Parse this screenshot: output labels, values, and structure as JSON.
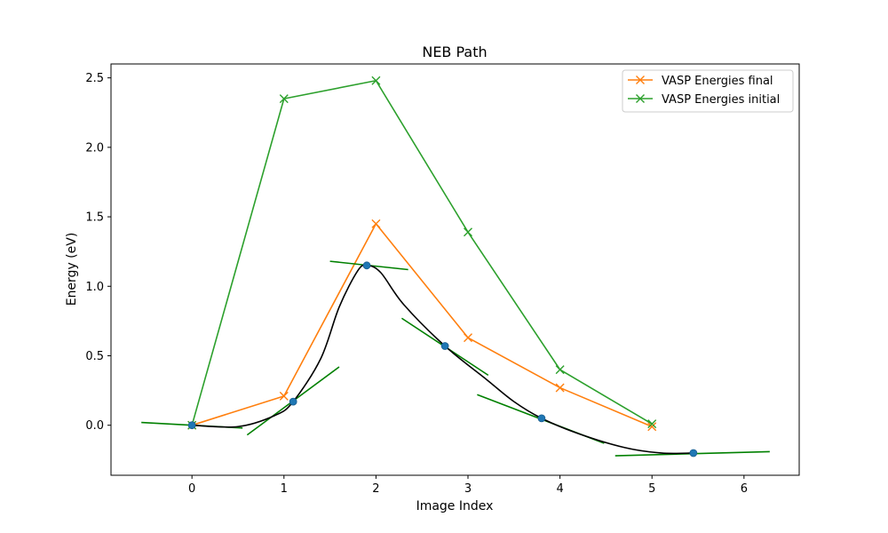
{
  "chart_data": {
    "type": "line",
    "title": "NEB Path",
    "xlabel": "Image Index",
    "ylabel": "Energy (eV)",
    "xlim": [
      -0.88,
      6.6
    ],
    "ylim": [
      -0.36,
      2.6
    ],
    "x_ticks": [
      0,
      1,
      2,
      3,
      4,
      5,
      6
    ],
    "y_ticks": [
      0.0,
      0.5,
      1.0,
      1.5,
      2.0,
      2.5
    ],
    "x_tick_labels": [
      "0",
      "1",
      "2",
      "3",
      "4",
      "5",
      "6"
    ],
    "y_tick_labels": [
      "0.0",
      "0.5",
      "1.0",
      "1.5",
      "2.0",
      "2.5"
    ],
    "grid": false,
    "legend_position": "top-right",
    "colors": {
      "final": "#ff7f0e",
      "initial": "#2ca02c",
      "points": "#1f77b4",
      "spline": "#000000",
      "tangent": "#008000"
    },
    "series": [
      {
        "name": "VASP Energies final",
        "marker": "x",
        "color": "#ff7f0e",
        "x": [
          0,
          1,
          2,
          3,
          4,
          5
        ],
        "y": [
          0.0,
          0.21,
          1.45,
          0.63,
          0.27,
          -0.01
        ]
      },
      {
        "name": "VASP Energies initial",
        "marker": "x",
        "color": "#2ca02c",
        "x": [
          0,
          1,
          2,
          3,
          4,
          5
        ],
        "y": [
          0.0,
          2.35,
          2.48,
          1.39,
          0.4,
          0.01
        ]
      }
    ],
    "neb_points": {
      "x": [
        0.0,
        1.1,
        1.9,
        2.75,
        3.8,
        5.45
      ],
      "y": [
        0.0,
        0.17,
        1.15,
        0.57,
        0.05,
        -0.2
      ]
    },
    "spline": {
      "x": [
        0.0,
        0.5,
        0.9,
        1.1,
        1.4,
        1.6,
        1.8,
        1.9,
        2.05,
        2.3,
        2.75,
        3.2,
        3.5,
        3.8,
        4.2,
        4.7,
        5.1,
        5.45
      ],
      "y": [
        0.0,
        -0.01,
        0.07,
        0.17,
        0.48,
        0.85,
        1.11,
        1.15,
        1.1,
        0.87,
        0.57,
        0.33,
        0.17,
        0.05,
        -0.06,
        -0.16,
        -0.2,
        -0.2
      ]
    },
    "tangents": [
      {
        "x": [
          -0.55,
          0.55
        ],
        "y": [
          0.02,
          -0.02
        ]
      },
      {
        "x": [
          0.6,
          1.6
        ],
        "y": [
          -0.07,
          0.42
        ]
      },
      {
        "x": [
          1.5,
          2.35
        ],
        "y": [
          1.18,
          1.12
        ]
      },
      {
        "x": [
          2.28,
          3.22
        ],
        "y": [
          0.77,
          0.36
        ]
      },
      {
        "x": [
          3.1,
          4.48
        ],
        "y": [
          0.22,
          -0.13
        ]
      },
      {
        "x": [
          4.6,
          6.28
        ],
        "y": [
          -0.22,
          -0.19
        ]
      }
    ]
  }
}
